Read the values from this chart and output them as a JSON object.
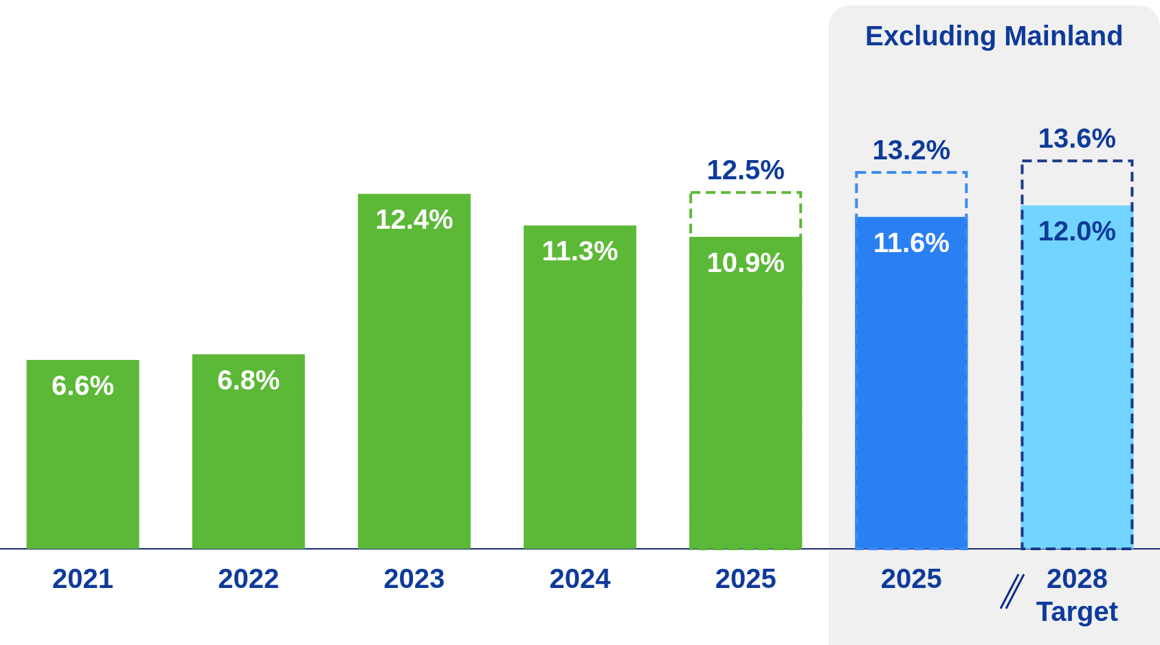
{
  "chart_data": {
    "type": "bar",
    "categories": [
      "2021",
      "2022",
      "2023",
      "2024",
      "2025",
      "2025",
      "2028 Target"
    ],
    "series": [
      {
        "colors": [
          "#5cb837",
          "#5cb837",
          "#5cb837",
          "#5cb837",
          "#5cb837",
          "#2a7ff2",
          "#73d4ff"
        ],
        "values": [
          6.6,
          6.8,
          12.4,
          11.3,
          10.9,
          11.6,
          12.0
        ],
        "value_labels": [
          "6.6%",
          "6.8%",
          "12.4%",
          "11.3%",
          "10.9%",
          "11.6%",
          "12.0%"
        ]
      },
      {
        "colors": [
          null,
          null,
          null,
          null,
          "#5cb837",
          "#3c8cf0",
          "#1a3a8a"
        ],
        "line_style": "dashed",
        "values": [
          null,
          null,
          null,
          null,
          12.5,
          13.2,
          13.6
        ],
        "value_labels": [
          null,
          null,
          null,
          null,
          "12.5%",
          "13.2%",
          "13.6%"
        ]
      }
    ],
    "annotations": [
      "Excluding Mainland"
    ],
    "grid": false,
    "legend": false,
    "tick_labels": "x"
  }
}
